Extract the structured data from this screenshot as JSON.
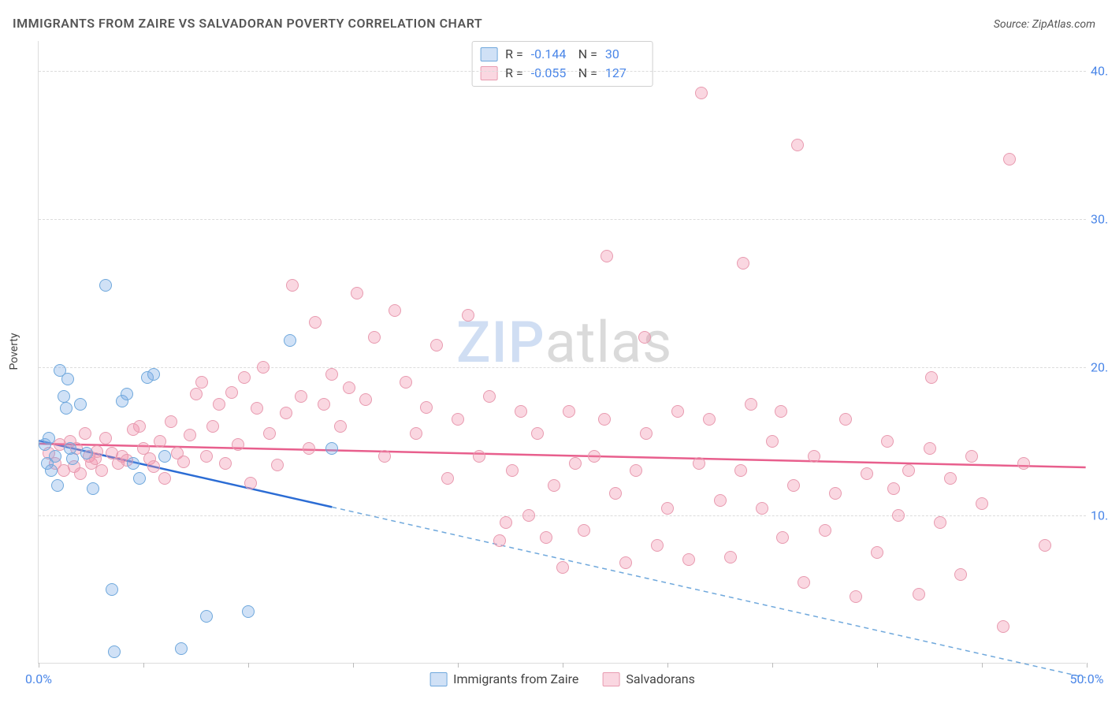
{
  "title": "IMMIGRANTS FROM ZAIRE VS SALVADORAN POVERTY CORRELATION CHART",
  "source_label": "Source:",
  "source_name": "ZipAtlas.com",
  "ylabel": "Poverty",
  "watermark_a": "ZIP",
  "watermark_b": "atlas",
  "chart": {
    "type": "scatter",
    "background_color": "#ffffff",
    "grid_color": "#dcdcdc",
    "grid_dash": "4,4",
    "xlim": [
      0,
      50
    ],
    "ylim": [
      0,
      42
    ],
    "y_ticks": [
      10,
      20,
      30,
      40
    ],
    "y_tick_labels": [
      "10.0%",
      "20.0%",
      "30.0%",
      "40.0%"
    ],
    "x_ticks": [
      0,
      5,
      10,
      15,
      20,
      25,
      30,
      35,
      40,
      45,
      50
    ],
    "x_tick_labels_shown": {
      "0": "0.0%",
      "50": "50.0%"
    },
    "label_color": "#4a86e8",
    "label_fontsize": 16,
    "marker_radius": 8,
    "marker_border_width": 1.2
  },
  "series": [
    {
      "name": "Immigrants from Zaire",
      "fill": "rgba(120,170,230,0.35)",
      "stroke": "#6fa8dc",
      "line_color": "#2b6cd4",
      "line_width": 2.5,
      "line_dash_color": "#6fa8dc",
      "R": "-0.144",
      "N": "30",
      "trend": {
        "x1": 0,
        "y1": 15.0,
        "x2": 50,
        "y2": -1.0,
        "solid_until_x": 14
      },
      "points": [
        [
          0.3,
          14.8
        ],
        [
          0.4,
          13.5
        ],
        [
          0.5,
          15.2
        ],
        [
          0.6,
          13.0
        ],
        [
          0.8,
          14.0
        ],
        [
          0.9,
          12.0
        ],
        [
          1.0,
          19.8
        ],
        [
          1.2,
          18.0
        ],
        [
          1.3,
          17.2
        ],
        [
          1.4,
          19.2
        ],
        [
          1.5,
          14.5
        ],
        [
          1.6,
          13.8
        ],
        [
          2.0,
          17.5
        ],
        [
          2.3,
          14.2
        ],
        [
          2.6,
          11.8
        ],
        [
          3.2,
          25.5
        ],
        [
          3.5,
          5.0
        ],
        [
          3.6,
          0.8
        ],
        [
          4.0,
          17.7
        ],
        [
          4.2,
          18.2
        ],
        [
          4.5,
          13.5
        ],
        [
          4.8,
          12.5
        ],
        [
          5.2,
          19.3
        ],
        [
          5.5,
          19.5
        ],
        [
          6.0,
          14.0
        ],
        [
          6.8,
          1.0
        ],
        [
          8.0,
          3.2
        ],
        [
          10.0,
          3.5
        ],
        [
          12.0,
          21.8
        ],
        [
          14.0,
          14.5
        ]
      ]
    },
    {
      "name": "Salvadorans",
      "fill": "rgba(240,140,170,0.35)",
      "stroke": "#e89bb0",
      "line_color": "#e85f8d",
      "line_width": 2.5,
      "R": "-0.055",
      "N": "127",
      "trend": {
        "x1": 0,
        "y1": 14.8,
        "x2": 50,
        "y2": 13.2,
        "solid_until_x": 50
      },
      "points": [
        [
          0.5,
          14.2
        ],
        [
          0.8,
          13.5
        ],
        [
          1.0,
          14.8
        ],
        [
          1.2,
          13.0
        ],
        [
          1.5,
          15.0
        ],
        [
          1.7,
          13.3
        ],
        [
          1.8,
          14.5
        ],
        [
          2.0,
          12.8
        ],
        [
          2.2,
          15.5
        ],
        [
          2.4,
          14.0
        ],
        [
          2.5,
          13.5
        ],
        [
          2.7,
          13.8
        ],
        [
          2.8,
          14.3
        ],
        [
          3.0,
          13.0
        ],
        [
          3.2,
          15.2
        ],
        [
          3.5,
          14.2
        ],
        [
          3.8,
          13.5
        ],
        [
          4.0,
          14.0
        ],
        [
          4.2,
          13.7
        ],
        [
          4.5,
          15.8
        ],
        [
          4.8,
          16.0
        ],
        [
          5.0,
          14.5
        ],
        [
          5.3,
          13.8
        ],
        [
          5.5,
          13.3
        ],
        [
          5.8,
          15.0
        ],
        [
          6.0,
          12.5
        ],
        [
          6.3,
          16.3
        ],
        [
          6.6,
          14.2
        ],
        [
          6.9,
          13.6
        ],
        [
          7.2,
          15.4
        ],
        [
          7.5,
          18.2
        ],
        [
          7.8,
          19.0
        ],
        [
          8.0,
          14.0
        ],
        [
          8.3,
          16.0
        ],
        [
          8.6,
          17.5
        ],
        [
          8.9,
          13.5
        ],
        [
          9.2,
          18.3
        ],
        [
          9.5,
          14.8
        ],
        [
          9.8,
          19.3
        ],
        [
          10.1,
          12.2
        ],
        [
          10.4,
          17.2
        ],
        [
          10.7,
          20.0
        ],
        [
          11.0,
          15.5
        ],
        [
          11.4,
          13.4
        ],
        [
          11.8,
          16.9
        ],
        [
          12.1,
          25.5
        ],
        [
          12.5,
          18.0
        ],
        [
          12.9,
          14.5
        ],
        [
          13.2,
          23.0
        ],
        [
          13.6,
          17.5
        ],
        [
          14.0,
          19.5
        ],
        [
          14.4,
          16.0
        ],
        [
          14.8,
          18.6
        ],
        [
          15.2,
          25.0
        ],
        [
          15.6,
          17.8
        ],
        [
          16.0,
          22.0
        ],
        [
          16.5,
          14.0
        ],
        [
          17.0,
          23.8
        ],
        [
          17.5,
          19.0
        ],
        [
          18.0,
          15.5
        ],
        [
          18.5,
          17.3
        ],
        [
          19.0,
          21.5
        ],
        [
          19.5,
          12.5
        ],
        [
          20.0,
          16.5
        ],
        [
          20.5,
          23.5
        ],
        [
          21.0,
          14.0
        ],
        [
          21.5,
          18.0
        ],
        [
          22.0,
          8.3
        ],
        [
          22.3,
          9.5
        ],
        [
          22.6,
          13.0
        ],
        [
          23.0,
          17.0
        ],
        [
          23.4,
          10.0
        ],
        [
          23.8,
          15.5
        ],
        [
          24.2,
          8.5
        ],
        [
          24.6,
          12.0
        ],
        [
          25.0,
          6.5
        ],
        [
          25.3,
          17.0
        ],
        [
          25.6,
          13.5
        ],
        [
          26.0,
          9.0
        ],
        [
          26.5,
          14.0
        ],
        [
          27.0,
          16.5
        ],
        [
          27.1,
          27.5
        ],
        [
          27.5,
          11.5
        ],
        [
          28.0,
          6.8
        ],
        [
          28.5,
          13.0
        ],
        [
          28.9,
          22.0
        ],
        [
          29.0,
          15.5
        ],
        [
          29.5,
          8.0
        ],
        [
          30.0,
          10.5
        ],
        [
          30.5,
          17.0
        ],
        [
          31.0,
          7.0
        ],
        [
          31.5,
          13.5
        ],
        [
          31.6,
          38.5
        ],
        [
          32.0,
          16.5
        ],
        [
          32.5,
          11.0
        ],
        [
          33.0,
          7.2
        ],
        [
          33.5,
          13.0
        ],
        [
          33.6,
          27.0
        ],
        [
          34.0,
          17.5
        ],
        [
          34.5,
          10.5
        ],
        [
          35.0,
          15.0
        ],
        [
          35.4,
          17.0
        ],
        [
          35.5,
          8.5
        ],
        [
          36.0,
          12.0
        ],
        [
          36.2,
          35.0
        ],
        [
          36.5,
          5.5
        ],
        [
          37.0,
          14.0
        ],
        [
          37.5,
          9.0
        ],
        [
          38.0,
          11.5
        ],
        [
          38.5,
          16.5
        ],
        [
          39.0,
          4.5
        ],
        [
          39.5,
          12.8
        ],
        [
          40.0,
          7.5
        ],
        [
          40.5,
          15.0
        ],
        [
          40.8,
          11.8
        ],
        [
          41.0,
          10.0
        ],
        [
          41.5,
          13.0
        ],
        [
          42.0,
          4.7
        ],
        [
          42.5,
          14.5
        ],
        [
          42.6,
          19.3
        ],
        [
          43.0,
          9.5
        ],
        [
          43.5,
          12.5
        ],
        [
          44.0,
          6.0
        ],
        [
          44.5,
          14.0
        ],
        [
          45.0,
          10.8
        ],
        [
          46.0,
          2.5
        ],
        [
          46.3,
          34.0
        ],
        [
          47.0,
          13.5
        ],
        [
          48.0,
          8.0
        ]
      ]
    }
  ],
  "legend_bottom": [
    "Immigrants from Zaire",
    "Salvadorans"
  ],
  "legend_top_labels": {
    "R": "R =",
    "N": "N ="
  }
}
